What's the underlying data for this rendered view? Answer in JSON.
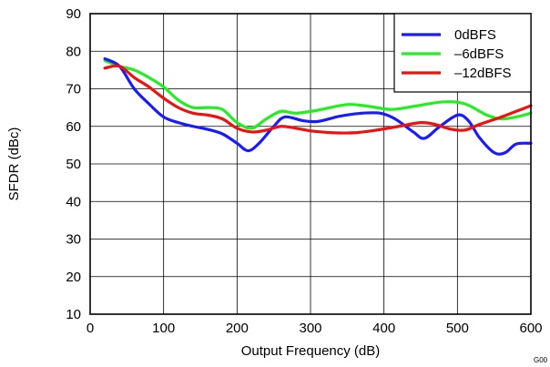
{
  "chart_data": {
    "type": "line",
    "xlabel": "Output Frequency (dB)",
    "ylabel": "SFDR (dBc)",
    "xlim": [
      0,
      600
    ],
    "ylim": [
      10,
      90
    ],
    "xticks": [
      0,
      100,
      200,
      300,
      400,
      500,
      600
    ],
    "yticks": [
      10,
      20,
      30,
      40,
      50,
      60,
      70,
      80,
      90
    ],
    "grid": true,
    "legend_position": "top-right",
    "figure_id": "G00",
    "series": [
      {
        "name": "0dBFS",
        "color": "#1a1aff",
        "points": [
          [
            20,
            78
          ],
          [
            40,
            76
          ],
          [
            60,
            70
          ],
          [
            80,
            66
          ],
          [
            100,
            62.5
          ],
          [
            120,
            61
          ],
          [
            140,
            60
          ],
          [
            160,
            59.2
          ],
          [
            180,
            58
          ],
          [
            200,
            55.5
          ],
          [
            215,
            53.5
          ],
          [
            230,
            55.5
          ],
          [
            250,
            60
          ],
          [
            265,
            62.5
          ],
          [
            290,
            61.5
          ],
          [
            310,
            61.3
          ],
          [
            340,
            62.7
          ],
          [
            370,
            63.5
          ],
          [
            395,
            63.5
          ],
          [
            415,
            62
          ],
          [
            440,
            58.5
          ],
          [
            455,
            56.8
          ],
          [
            475,
            59.8
          ],
          [
            500,
            63
          ],
          [
            515,
            61.5
          ],
          [
            530,
            57
          ],
          [
            550,
            53
          ],
          [
            565,
            53
          ],
          [
            580,
            55.3
          ],
          [
            600,
            55.5
          ]
        ]
      },
      {
        "name": "–6dBFS",
        "color": "#22ee22",
        "points": [
          [
            20,
            77.5
          ],
          [
            40,
            76
          ],
          [
            60,
            75
          ],
          [
            80,
            73
          ],
          [
            100,
            70.5
          ],
          [
            120,
            67
          ],
          [
            140,
            65
          ],
          [
            160,
            65
          ],
          [
            180,
            64.5
          ],
          [
            200,
            61
          ],
          [
            220,
            59.5
          ],
          [
            240,
            62
          ],
          [
            260,
            64
          ],
          [
            280,
            63.5
          ],
          [
            310,
            64.3
          ],
          [
            350,
            65.8
          ],
          [
            380,
            65.3
          ],
          [
            410,
            64.5
          ],
          [
            440,
            65.3
          ],
          [
            480,
            66.5
          ],
          [
            510,
            66
          ],
          [
            540,
            63
          ],
          [
            560,
            62
          ],
          [
            580,
            62.5
          ],
          [
            600,
            63.5
          ]
        ]
      },
      {
        "name": "–12dBFS",
        "color": "#ee1111",
        "points": [
          [
            20,
            75.5
          ],
          [
            40,
            76
          ],
          [
            60,
            73
          ],
          [
            80,
            70.5
          ],
          [
            100,
            67.5
          ],
          [
            120,
            65
          ],
          [
            140,
            63.5
          ],
          [
            160,
            63
          ],
          [
            180,
            62
          ],
          [
            200,
            59.5
          ],
          [
            220,
            58.5
          ],
          [
            240,
            59
          ],
          [
            260,
            60
          ],
          [
            280,
            59.5
          ],
          [
            300,
            58.8
          ],
          [
            330,
            58.3
          ],
          [
            360,
            58.3
          ],
          [
            390,
            59
          ],
          [
            420,
            60
          ],
          [
            450,
            61
          ],
          [
            470,
            60.5
          ],
          [
            490,
            59.3
          ],
          [
            510,
            59
          ],
          [
            530,
            60.5
          ],
          [
            560,
            62.5
          ],
          [
            580,
            64
          ],
          [
            600,
            65.5
          ]
        ]
      }
    ]
  }
}
